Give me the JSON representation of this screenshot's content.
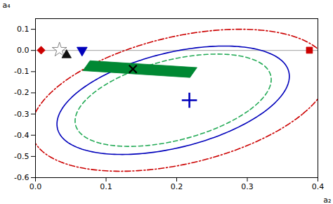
{
  "chart_data": {
    "type": "scatter",
    "xlabel": "a₂",
    "ylabel": "a₄",
    "xlim": [
      0,
      0.4
    ],
    "ylim": [
      -0.6,
      0.15
    ],
    "xticks": [
      {
        "value": 0,
        "label": "0.0"
      },
      0.1,
      0.2,
      0.3,
      0.4
    ],
    "yticks": [
      -0.6,
      -0.5,
      -0.4,
      -0.3,
      -0.2,
      -0.1,
      {
        "value": 0,
        "label": "0.0"
      },
      0.1
    ],
    "hline_y": 0.0,
    "ellipses": [
      {
        "center_x": 0.205,
        "center_y": -0.235,
        "width": 0.37,
        "height": 0.7,
        "angle": -20,
        "color": "#cc0000",
        "line_style": "dashdot"
      },
      {
        "center_x": 0.195,
        "center_y": -0.235,
        "width": 0.235,
        "height": 0.46,
        "angle": -22,
        "color": "#22aa55",
        "line_style": "dashed"
      },
      {
        "center_x": 0.195,
        "center_y": -0.235,
        "width": 0.28,
        "height": 0.54,
        "angle": -22,
        "color": "#0000bb",
        "line_style": "solid"
      }
    ],
    "band": {
      "center_x": 0.148,
      "center_y": -0.088,
      "width": 0.155,
      "height": 0.048,
      "angle": -12,
      "color": "#008833"
    },
    "points": [
      {
        "x": 0.138,
        "y": -0.088,
        "color": "#000000",
        "marker": "times"
      },
      {
        "x": 0.218,
        "y": -0.235,
        "color": "#0000bb",
        "marker": "plus"
      },
      {
        "x": 0.008,
        "y": 0.001,
        "color": "#cc0000",
        "marker": "diamond"
      },
      {
        "x": 0.034,
        "y": 0.003,
        "color": "white",
        "marker": "star"
      },
      {
        "x": 0.044,
        "y": -0.022,
        "color": "#111111",
        "marker": "triangle_up"
      },
      {
        "x": 0.066,
        "y": 0.001,
        "color": "#0000bb",
        "marker": "triangle_down"
      },
      {
        "x": 0.388,
        "y": 0.001,
        "color": "#cc0000",
        "marker": "square"
      }
    ]
  }
}
